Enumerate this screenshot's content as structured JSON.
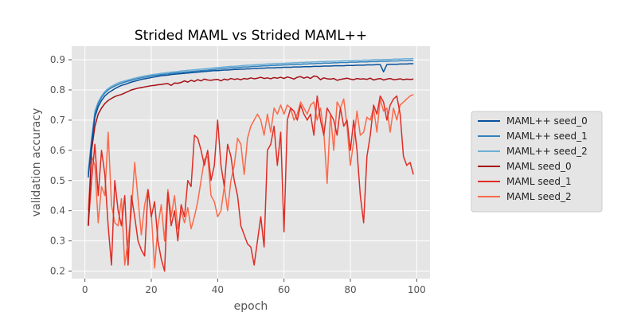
{
  "chart_data": {
    "type": "line",
    "title": "Strided MAML vs Strided MAML++",
    "xlabel": "epoch",
    "ylabel": "validation accuracy",
    "xlim": [
      -4,
      104
    ],
    "ylim": [
      0.175,
      0.945
    ],
    "xticks": [
      0,
      20,
      40,
      60,
      80,
      100
    ],
    "yticks": [
      0.2,
      0.3,
      0.4,
      0.5,
      0.6,
      0.7,
      0.8,
      0.9
    ],
    "grid": true,
    "legend_position": "right-outside",
    "x": [
      1,
      2,
      3,
      4,
      5,
      6,
      7,
      8,
      9,
      10,
      11,
      12,
      13,
      14,
      15,
      16,
      17,
      18,
      19,
      20,
      21,
      22,
      23,
      24,
      25,
      26,
      27,
      28,
      29,
      30,
      31,
      32,
      33,
      34,
      35,
      36,
      37,
      38,
      39,
      40,
      41,
      42,
      43,
      44,
      45,
      46,
      47,
      48,
      49,
      50,
      51,
      52,
      53,
      54,
      55,
      56,
      57,
      58,
      59,
      60,
      61,
      62,
      63,
      64,
      65,
      66,
      67,
      68,
      69,
      70,
      71,
      72,
      73,
      74,
      75,
      76,
      77,
      78,
      79,
      80,
      81,
      82,
      83,
      84,
      85,
      86,
      87,
      88,
      89,
      90,
      91,
      92,
      93,
      94,
      95,
      96,
      97,
      98,
      99
    ],
    "series": [
      {
        "name": "MAML++ seed_0",
        "color": "#08519c",
        "values": [
          0.51,
          0.62,
          0.71,
          0.745,
          0.765,
          0.78,
          0.79,
          0.797,
          0.804,
          0.81,
          0.815,
          0.818,
          0.822,
          0.826,
          0.829,
          0.832,
          0.835,
          0.837,
          0.839,
          0.841,
          0.843,
          0.845,
          0.847,
          0.848,
          0.849,
          0.851,
          0.852,
          0.853,
          0.854,
          0.855,
          0.856,
          0.857,
          0.858,
          0.859,
          0.86,
          0.861,
          0.862,
          0.863,
          0.864,
          0.864,
          0.865,
          0.866,
          0.866,
          0.867,
          0.868,
          0.868,
          0.869,
          0.869,
          0.87,
          0.87,
          0.871,
          0.871,
          0.872,
          0.872,
          0.873,
          0.873,
          0.873,
          0.874,
          0.874,
          0.875,
          0.875,
          0.875,
          0.876,
          0.876,
          0.876,
          0.877,
          0.877,
          0.877,
          0.878,
          0.878,
          0.878,
          0.879,
          0.879,
          0.879,
          0.88,
          0.88,
          0.88,
          0.88,
          0.881,
          0.881,
          0.881,
          0.882,
          0.882,
          0.882,
          0.883,
          0.883,
          0.883,
          0.884,
          0.884,
          0.86,
          0.884,
          0.885,
          0.885,
          0.885,
          0.886,
          0.886,
          0.886,
          0.887,
          0.887
        ]
      },
      {
        "name": "MAML++ seed_1",
        "color": "#3182bd",
        "values": [
          0.52,
          0.63,
          0.72,
          0.755,
          0.775,
          0.79,
          0.8,
          0.807,
          0.813,
          0.818,
          0.822,
          0.826,
          0.829,
          0.832,
          0.835,
          0.838,
          0.84,
          0.842,
          0.844,
          0.846,
          0.848,
          0.849,
          0.851,
          0.852,
          0.853,
          0.855,
          0.856,
          0.857,
          0.858,
          0.859,
          0.86,
          0.861,
          0.862,
          0.863,
          0.864,
          0.865,
          0.866,
          0.867,
          0.868,
          0.869,
          0.87,
          0.871,
          0.872,
          0.873,
          0.873,
          0.874,
          0.875,
          0.876,
          0.876,
          0.877,
          0.878,
          0.878,
          0.879,
          0.88,
          0.88,
          0.881,
          0.881,
          0.882,
          0.882,
          0.883,
          0.883,
          0.884,
          0.884,
          0.885,
          0.885,
          0.886,
          0.886,
          0.887,
          0.887,
          0.888,
          0.888,
          0.889,
          0.889,
          0.889,
          0.89,
          0.89,
          0.891,
          0.891,
          0.891,
          0.892,
          0.892,
          0.892,
          0.893,
          0.893,
          0.893,
          0.894,
          0.894,
          0.894,
          0.895,
          0.895,
          0.895,
          0.896,
          0.896,
          0.896,
          0.897,
          0.897,
          0.897,
          0.898,
          0.898
        ]
      },
      {
        "name": "MAML++ seed_2",
        "color": "#6baed6",
        "values": [
          0.53,
          0.64,
          0.73,
          0.76,
          0.78,
          0.795,
          0.805,
          0.812,
          0.818,
          0.823,
          0.827,
          0.83,
          0.833,
          0.836,
          0.839,
          0.842,
          0.844,
          0.846,
          0.848,
          0.85,
          0.852,
          0.853,
          0.855,
          0.856,
          0.858,
          0.859,
          0.86,
          0.861,
          0.863,
          0.864,
          0.865,
          0.866,
          0.867,
          0.868,
          0.869,
          0.87,
          0.871,
          0.872,
          0.873,
          0.874,
          0.875,
          0.876,
          0.877,
          0.878,
          0.878,
          0.879,
          0.88,
          0.881,
          0.882,
          0.882,
          0.883,
          0.884,
          0.884,
          0.885,
          0.886,
          0.886,
          0.887,
          0.887,
          0.888,
          0.888,
          0.889,
          0.889,
          0.89,
          0.89,
          0.891,
          0.891,
          0.892,
          0.892,
          0.893,
          0.893,
          0.894,
          0.894,
          0.895,
          0.895,
          0.895,
          0.896,
          0.896,
          0.897,
          0.897,
          0.897,
          0.898,
          0.898,
          0.898,
          0.899,
          0.899,
          0.899,
          0.9,
          0.9,
          0.9,
          0.901,
          0.901,
          0.901,
          0.902,
          0.902,
          0.902,
          0.903,
          0.903,
          0.903,
          0.904
        ]
      },
      {
        "name": "MAML seed_0",
        "color": "#a50f15",
        "values": [
          0.35,
          0.6,
          0.68,
          0.72,
          0.74,
          0.755,
          0.765,
          0.772,
          0.778,
          0.782,
          0.785,
          0.79,
          0.795,
          0.8,
          0.803,
          0.806,
          0.808,
          0.81,
          0.812,
          0.814,
          0.815,
          0.817,
          0.818,
          0.82,
          0.821,
          0.815,
          0.823,
          0.822,
          0.825,
          0.83,
          0.826,
          0.832,
          0.828,
          0.834,
          0.83,
          0.836,
          0.833,
          0.832,
          0.834,
          0.835,
          0.83,
          0.836,
          0.833,
          0.838,
          0.835,
          0.837,
          0.834,
          0.838,
          0.836,
          0.84,
          0.837,
          0.839,
          0.842,
          0.838,
          0.84,
          0.837,
          0.841,
          0.839,
          0.842,
          0.838,
          0.843,
          0.84,
          0.836,
          0.842,
          0.844,
          0.839,
          0.843,
          0.838,
          0.846,
          0.844,
          0.834,
          0.84,
          0.837,
          0.836,
          0.838,
          0.832,
          0.835,
          0.837,
          0.839,
          0.836,
          0.834,
          0.838,
          0.836,
          0.837,
          0.835,
          0.839,
          0.833,
          0.836,
          0.838,
          0.833,
          0.836,
          0.838,
          0.834,
          0.835,
          0.837,
          0.834,
          0.836,
          0.835,
          0.836
        ]
      },
      {
        "name": "MAML seed_1",
        "color": "#de2d26",
        "values": [
          0.35,
          0.5,
          0.62,
          0.45,
          0.6,
          0.52,
          0.35,
          0.22,
          0.5,
          0.4,
          0.35,
          0.45,
          0.22,
          0.45,
          0.38,
          0.3,
          0.27,
          0.25,
          0.47,
          0.38,
          0.43,
          0.3,
          0.24,
          0.2,
          0.46,
          0.35,
          0.4,
          0.3,
          0.42,
          0.38,
          0.5,
          0.48,
          0.65,
          0.64,
          0.6,
          0.55,
          0.6,
          0.5,
          0.55,
          0.7,
          0.55,
          0.48,
          0.62,
          0.58,
          0.5,
          0.45,
          0.35,
          0.32,
          0.29,
          0.28,
          0.22,
          0.3,
          0.38,
          0.28,
          0.6,
          0.62,
          0.68,
          0.55,
          0.66,
          0.33,
          0.7,
          0.74,
          0.73,
          0.7,
          0.75,
          0.72,
          0.7,
          0.72,
          0.65,
          0.78,
          0.7,
          0.65,
          0.74,
          0.72,
          0.7,
          0.65,
          0.74,
          0.68,
          0.7,
          0.6,
          0.7,
          0.6,
          0.45,
          0.36,
          0.58,
          0.65,
          0.75,
          0.72,
          0.78,
          0.76,
          0.7,
          0.75,
          0.77,
          0.78,
          0.72,
          0.58,
          0.55,
          0.56,
          0.52
        ]
      },
      {
        "name": "MAML seed_2",
        "color": "#fb6a4a",
        "values": [
          0.4,
          0.58,
          0.55,
          0.36,
          0.48,
          0.45,
          0.66,
          0.42,
          0.36,
          0.35,
          0.44,
          0.22,
          0.3,
          0.4,
          0.56,
          0.44,
          0.32,
          0.42,
          0.47,
          0.39,
          0.21,
          0.35,
          0.42,
          0.3,
          0.47,
          0.38,
          0.45,
          0.34,
          0.4,
          0.36,
          0.41,
          0.34,
          0.38,
          0.43,
          0.5,
          0.57,
          0.58,
          0.45,
          0.43,
          0.38,
          0.4,
          0.48,
          0.4,
          0.5,
          0.55,
          0.64,
          0.62,
          0.52,
          0.64,
          0.68,
          0.7,
          0.72,
          0.7,
          0.65,
          0.72,
          0.66,
          0.74,
          0.72,
          0.75,
          0.72,
          0.75,
          0.74,
          0.7,
          0.72,
          0.76,
          0.74,
          0.72,
          0.75,
          0.76,
          0.7,
          0.74,
          0.66,
          0.49,
          0.72,
          0.6,
          0.76,
          0.74,
          0.77,
          0.68,
          0.55,
          0.63,
          0.73,
          0.65,
          0.66,
          0.71,
          0.7,
          0.74,
          0.66,
          0.77,
          0.73,
          0.74,
          0.66,
          0.74,
          0.7,
          0.75,
          0.76,
          0.77,
          0.78,
          0.785
        ]
      }
    ]
  }
}
